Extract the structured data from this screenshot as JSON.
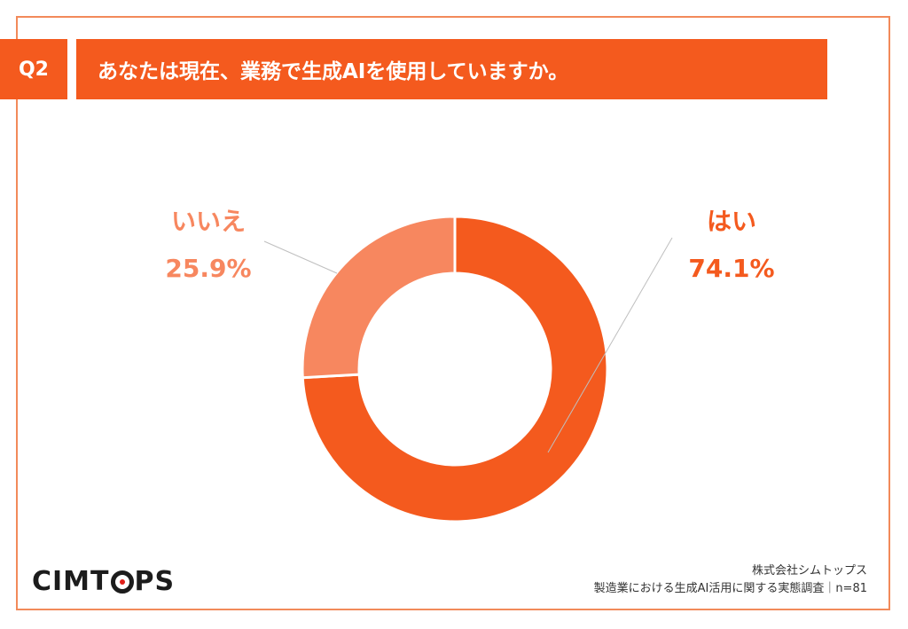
{
  "question": {
    "badge": "Q2",
    "text": "あなたは現在、業務で生成AIを使用していますか。"
  },
  "chart_data": {
    "type": "pie",
    "donut": true,
    "slices": [
      {
        "label": "はい",
        "value": 74.1,
        "display": "74.1%",
        "color": "#f45a1e"
      },
      {
        "label": "いいえ",
        "value": 25.9,
        "display": "25.9%",
        "color": "#f7875f"
      }
    ]
  },
  "logo": {
    "part1": "CIMT",
    "part2": "PS"
  },
  "footer": {
    "company": "株式会社シムトップス",
    "survey": "製造業における生成AI活用に関する実態調査｜n=81"
  }
}
